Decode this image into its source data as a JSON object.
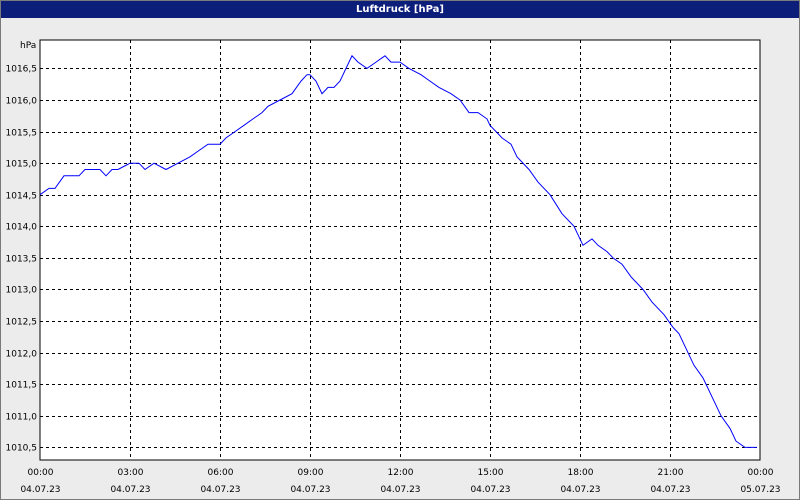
{
  "window": {
    "title": "Luftdruck [hPa]"
  },
  "chart_data": {
    "type": "line",
    "title": "Luftdruck [hPa]",
    "ylabel": "hPa",
    "xlabel": "",
    "ylim": [
      1010.3,
      1016.95
    ],
    "xlim": [
      0,
      24
    ],
    "grid": true,
    "legend": "none",
    "colors": {
      "line": "#0000ff",
      "background": "#ececec",
      "plot_bg": "#ffffff",
      "title_bar": "#0b1e7a"
    },
    "yticks": [
      {
        "v": 1010.5,
        "label": "1010,5"
      },
      {
        "v": 1011.0,
        "label": "1011,0"
      },
      {
        "v": 1011.5,
        "label": "1011,5"
      },
      {
        "v": 1012.0,
        "label": "1012,0"
      },
      {
        "v": 1012.5,
        "label": "1012,5"
      },
      {
        "v": 1013.0,
        "label": "1013,0"
      },
      {
        "v": 1013.5,
        "label": "1013,5"
      },
      {
        "v": 1014.0,
        "label": "1014,0"
      },
      {
        "v": 1014.5,
        "label": "1014,5"
      },
      {
        "v": 1015.0,
        "label": "1015,0"
      },
      {
        "v": 1015.5,
        "label": "1015,5"
      },
      {
        "v": 1016.0,
        "label": "1016,0"
      },
      {
        "v": 1016.5,
        "label": "1016,5"
      }
    ],
    "xticks": [
      {
        "v": 0,
        "time": "00:00",
        "date": "04.07.23"
      },
      {
        "v": 3,
        "time": "03:00",
        "date": "04.07.23"
      },
      {
        "v": 6,
        "time": "06:00",
        "date": "04.07.23"
      },
      {
        "v": 9,
        "time": "09:00",
        "date": "04.07.23"
      },
      {
        "v": 12,
        "time": "12:00",
        "date": "04.07.23"
      },
      {
        "v": 15,
        "time": "15:00",
        "date": "04.07.23"
      },
      {
        "v": 18,
        "time": "18:00",
        "date": "04.07.23"
      },
      {
        "v": 21,
        "time": "21:00",
        "date": "04.07.23"
      },
      {
        "v": 24,
        "time": "00:00",
        "date": "05.07.23"
      }
    ],
    "series": [
      {
        "x": [
          0,
          0.3,
          0.5,
          0.8,
          1.3,
          1.5,
          2,
          2.2,
          2.4,
          2.6,
          3,
          3.3,
          3.5,
          3.8,
          4.2,
          4.6,
          5,
          5.3,
          5.6,
          6,
          6.2,
          6.5,
          6.8,
          7.1,
          7.4,
          7.6,
          8,
          8.4,
          8.7,
          8.9,
          9,
          9.2,
          9.4,
          9.6,
          9.8,
          10,
          10.2,
          10.4,
          10.6,
          10.9,
          11.2,
          11.5,
          11.7,
          12,
          12.3,
          12.7,
          13,
          13.3,
          13.7,
          14,
          14.3,
          14.6,
          14.9,
          15,
          15.4,
          15.7,
          15.9,
          16.3,
          16.6,
          17,
          17.4,
          17.8,
          18.1,
          18.4,
          18.6,
          18.9,
          19.1,
          19.4,
          19.7,
          20.1,
          20.4,
          20.8,
          21.1,
          21.3,
          21.5,
          21.8,
          22.1,
          22.4,
          22.7,
          23,
          23.2,
          23.5,
          23.9
        ],
        "values": [
          1014.5,
          1014.6,
          1014.6,
          1014.8,
          1014.8,
          1014.9,
          1014.9,
          1014.8,
          1014.9,
          1014.9,
          1015.0,
          1015.0,
          1014.9,
          1015.0,
          1014.9,
          1015.0,
          1015.1,
          1015.2,
          1015.3,
          1015.3,
          1015.4,
          1015.5,
          1015.6,
          1015.7,
          1015.8,
          1015.9,
          1016.0,
          1016.1,
          1016.3,
          1016.4,
          1016.4,
          1016.3,
          1016.1,
          1016.2,
          1016.2,
          1016.3,
          1016.5,
          1016.7,
          1016.6,
          1016.5,
          1016.6,
          1016.7,
          1016.6,
          1016.6,
          1016.5,
          1016.4,
          1016.3,
          1016.2,
          1016.1,
          1016.0,
          1015.8,
          1015.8,
          1015.7,
          1015.6,
          1015.4,
          1015.3,
          1015.1,
          1014.9,
          1014.7,
          1014.5,
          1014.2,
          1014.0,
          1013.7,
          1013.8,
          1013.7,
          1013.6,
          1013.5,
          1013.4,
          1013.2,
          1013.0,
          1012.8,
          1012.6,
          1012.4,
          1012.3,
          1012.1,
          1011.8,
          1011.6,
          1011.3,
          1011.0,
          1010.8,
          1010.6,
          1010.5,
          1010.5
        ]
      }
    ]
  }
}
